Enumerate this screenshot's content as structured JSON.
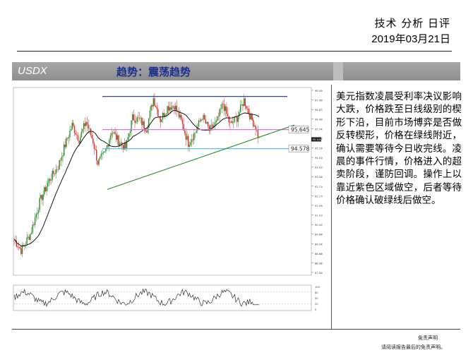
{
  "header": {
    "title": "技术 分析 日评",
    "date": "2019年03月21日"
  },
  "bar": {
    "ticker": "USDX",
    "trend": "趋势：震荡趋势"
  },
  "chart_data": {
    "type": "candlestick",
    "symbol": "USDX",
    "y_ticks": [
      "98.000",
      "97.450",
      "96.875",
      "96.400",
      "95.745",
      "95.645",
      "95.100",
      "94.510",
      "93.925",
      "93.340",
      "92.710",
      "92.170",
      "91.590",
      "91.010",
      "90.425",
      "89.840",
      "89.245",
      "88.660",
      "88.085",
      "87.500"
    ],
    "ylim": [
      87.5,
      98.0
    ],
    "resistance_level": 97.5,
    "purple_level": 95.645,
    "cyan_level": 94.578,
    "price_labels": {
      "purple": "95.645",
      "cyan": "94.578",
      "last": "95.100"
    },
    "oscillator_ticks": [
      "100",
      "80",
      "50",
      "20",
      "0"
    ],
    "colors": {
      "up": "#2e8b2e",
      "down": "#d62a2a",
      "ma": "#000000",
      "resistance": "#1f2f8a",
      "trendline": "#2e8b2e",
      "purple": "#e070e0",
      "cyan": "#4cb8ec"
    }
  },
  "commentary": "美元指数凌晨受利率决议影响大跌，价格跌至日线级别的楔形下沿，目前市场博弈是否做反转楔形，价格在绿线附近，确认需要等待今日收完线。凌晨的事件行情，价格进入的超卖阶段，谨防回调。操作上以靠近紫色区域做空，后者等待价格确认破绿线后做空。",
  "footer": {
    "line1": "免责声明",
    "line2": "请阅读报告最后的免责声明。"
  }
}
